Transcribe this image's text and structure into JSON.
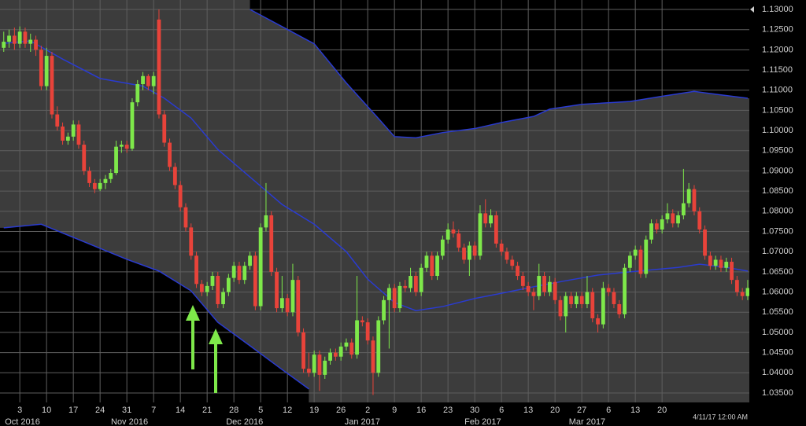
{
  "chart_data": {
    "type": "candlestick",
    "up_color": "#7ee84a",
    "down_color": "#e8433a",
    "grid": true,
    "xlim": [
      -0.7,
      139.3
    ],
    "ylim": [
      1.03266,
      1.13234
    ],
    "yticks": [
      {
        "value": 1.035,
        "label": "1.03500"
      },
      {
        "value": 1.04,
        "label": "1.04000"
      },
      {
        "value": 1.045,
        "label": "1.04500"
      },
      {
        "value": 1.05,
        "label": "1.05000"
      },
      {
        "value": 1.055,
        "label": "1.05500"
      },
      {
        "value": 1.06,
        "label": "1.06000"
      },
      {
        "value": 1.065,
        "label": "1.06500"
      },
      {
        "value": 1.07,
        "label": "1.07000"
      },
      {
        "value": 1.075,
        "label": "1.07500"
      },
      {
        "value": 1.08,
        "label": "1.08000"
      },
      {
        "value": 1.085,
        "label": "1.08500"
      },
      {
        "value": 1.09,
        "label": "1.09000"
      },
      {
        "value": 1.095,
        "label": "1.09500"
      },
      {
        "value": 1.1,
        "label": "1.10000"
      },
      {
        "value": 1.105,
        "label": "1.10500"
      },
      {
        "value": 1.11,
        "label": "1.11000"
      },
      {
        "value": 1.115,
        "label": "1.11500"
      },
      {
        "value": 1.12,
        "label": "1.12000"
      },
      {
        "value": 1.125,
        "label": "1.12500"
      },
      {
        "value": 1.13,
        "label": "1.13000"
      }
    ],
    "xticks": [
      3,
      {
        "value": 8,
        "label": "10"
      },
      {
        "value": 13,
        "label": "17"
      },
      {
        "value": 18,
        "label": "24"
      },
      {
        "value": 23,
        "label": "31"
      },
      {
        "value": 28,
        "label": "7"
      },
      {
        "value": 33,
        "label": "14"
      },
      {
        "value": 38,
        "label": "21"
      },
      {
        "value": 43,
        "label": "28"
      },
      {
        "value": 48,
        "label": "5"
      },
      {
        "value": 53,
        "label": "12"
      },
      {
        "value": 58,
        "label": "19"
      },
      {
        "value": 63,
        "label": "26"
      },
      {
        "value": 68,
        "label": "2"
      },
      {
        "value": 73,
        "label": "9"
      },
      {
        "value": 78,
        "label": "16"
      },
      {
        "value": 83,
        "label": "23"
      },
      {
        "value": 88,
        "label": "30"
      },
      {
        "value": 93,
        "label": "6"
      },
      {
        "value": 98,
        "label": "13"
      },
      {
        "value": 103,
        "label": "20"
      },
      {
        "value": 108,
        "label": "27"
      },
      {
        "value": 113,
        "label": "6"
      },
      {
        "value": 118,
        "label": "13"
      },
      {
        "value": 123,
        "label": "20"
      }
    ],
    "month_labels": [
      {
        "value": 3.5,
        "label": "Oct 2016"
      },
      {
        "value": 23.5,
        "label": "Nov 2016"
      },
      {
        "value": 45,
        "label": "Dec 2016"
      },
      {
        "value": 67,
        "label": "Jan 2017"
      },
      {
        "value": 89.5,
        "label": "Feb 2017"
      },
      {
        "value": 109,
        "label": "Mar 2017"
      }
    ],
    "date_label": "4/11/17 12:00 AM",
    "bands": [
      {
        "color": "#2a3bd0",
        "x": [
          46,
          58,
          64,
          70,
          73,
          77,
          82,
          88,
          93,
          99,
          102,
          108,
          117,
          123,
          129,
          133,
          139
        ],
        "values": [
          1.13,
          1.1215,
          1.1118,
          1.103,
          1.0985,
          1.0982,
          1.0995,
          1.1005,
          1.102,
          1.1035,
          1.1053,
          1.1065,
          1.1072,
          1.1085,
          1.1097,
          1.109,
          1.108
        ]
      },
      {
        "color": "#2a3bd0",
        "x": [
          0,
          5,
          11,
          18,
          26,
          30,
          35,
          40,
          46,
          52,
          58,
          64,
          68,
          73,
          77,
          82,
          88,
          93,
          99,
          105,
          111,
          117,
          126,
          130,
          135,
          139
        ],
        "values": [
          1.1216,
          1.1222,
          1.1177,
          1.1129,
          1.111,
          1.108,
          1.1031,
          1.0953,
          1.0885,
          1.0817,
          1.0768,
          1.07,
          1.0632,
          1.0574,
          1.0554,
          1.0564,
          1.0584,
          1.0597,
          1.0613,
          1.0628,
          1.0642,
          1.065,
          1.0661,
          1.0669,
          1.0661,
          1.0652
        ]
      },
      {
        "color": "#2a3bd0",
        "x": [
          0,
          7,
          14,
          23,
          29,
          35,
          40,
          46,
          52,
          57
        ],
        "values": [
          1.0759,
          1.0768,
          1.073,
          1.0681,
          1.0652,
          1.0603,
          1.0525,
          1.0467,
          1.0408,
          1.036
        ]
      }
    ],
    "ohlc": [
      [
        1.1205,
        1.1245,
        1.1195,
        1.122
      ],
      [
        1.122,
        1.125,
        1.1205,
        1.1235
      ],
      [
        1.1235,
        1.1255,
        1.12,
        1.1215
      ],
      [
        1.1215,
        1.1258,
        1.1205,
        1.1245
      ],
      [
        1.1245,
        1.1255,
        1.1205,
        1.1215
      ],
      [
        1.1215,
        1.124,
        1.1195,
        1.1225
      ],
      [
        1.1225,
        1.1235,
        1.1185,
        1.12
      ],
      [
        1.12,
        1.121,
        1.11,
        1.111
      ],
      [
        1.111,
        1.1205,
        1.11,
        1.1185
      ],
      [
        1.1185,
        1.1195,
        1.103,
        1.104
      ],
      [
        1.104,
        1.106,
        1.1,
        1.101
      ],
      [
        1.101,
        1.102,
        1.0965,
        1.0975
      ],
      [
        1.0975,
        1.0995,
        1.0965,
        1.0985
      ],
      [
        1.0985,
        1.1025,
        1.0975,
        1.1015
      ],
      [
        1.1015,
        1.1025,
        1.0955,
        1.0965
      ],
      [
        1.0965,
        1.0975,
        1.089,
        1.09
      ],
      [
        1.09,
        1.091,
        1.086,
        1.087
      ],
      [
        1.087,
        1.088,
        1.0845,
        1.0855
      ],
      [
        1.0855,
        1.088,
        1.085,
        1.087
      ],
      [
        1.087,
        1.089,
        1.0855,
        1.088
      ],
      [
        1.088,
        1.0905,
        1.087,
        1.0895
      ],
      [
        1.0895,
        1.0975,
        1.089,
        1.096
      ],
      [
        1.096,
        1.0975,
        1.0945,
        1.0965
      ],
      [
        1.0965,
        1.0975,
        1.0945,
        1.0955
      ],
      [
        1.0955,
        1.108,
        1.095,
        1.107
      ],
      [
        1.107,
        1.1125,
        1.106,
        1.1115
      ],
      [
        1.1115,
        1.1145,
        1.11,
        1.1135
      ],
      [
        1.1135,
        1.114,
        1.11,
        1.111
      ],
      [
        1.111,
        1.1145,
        1.109,
        1.1135
      ],
      [
        1.1275,
        1.13,
        1.103,
        1.104
      ],
      [
        1.104,
        1.105,
        1.096,
        1.097
      ],
      [
        1.097,
        1.098,
        1.09,
        1.091
      ],
      [
        1.091,
        1.092,
        1.0855,
        1.0865
      ],
      [
        1.0865,
        1.0875,
        1.08,
        1.081
      ],
      [
        1.081,
        1.082,
        1.075,
        1.076
      ],
      [
        1.076,
        1.077,
        1.068,
        1.069
      ],
      [
        1.069,
        1.07,
        1.061,
        1.062
      ],
      [
        1.062,
        1.063,
        1.059,
        1.06
      ],
      [
        1.06,
        1.0625,
        1.059,
        1.0615
      ],
      [
        1.0615,
        1.065,
        1.0605,
        1.064
      ],
      [
        1.064,
        1.065,
        1.056,
        1.057
      ],
      [
        1.057,
        1.061,
        1.056,
        1.06
      ],
      [
        1.06,
        1.0645,
        1.059,
        1.0635
      ],
      [
        1.0635,
        1.0675,
        1.0625,
        1.0665
      ],
      [
        1.0665,
        1.0675,
        1.062,
        1.063
      ],
      [
        1.063,
        1.0675,
        1.062,
        1.0665
      ],
      [
        1.0665,
        1.07,
        1.0655,
        1.069
      ],
      [
        1.069,
        1.07,
        1.0555,
        1.0565
      ],
      [
        1.0565,
        1.077,
        1.0555,
        1.076
      ],
      [
        1.076,
        1.087,
        1.075,
        1.079
      ],
      [
        1.079,
        1.08,
        1.064,
        1.065
      ],
      [
        1.065,
        1.066,
        1.055,
        1.056
      ],
      [
        1.056,
        1.064,
        1.055,
        1.0585
      ],
      [
        1.0585,
        1.0595,
        1.054,
        1.055
      ],
      [
        1.055,
        1.067,
        1.054,
        1.063
      ],
      [
        1.063,
        1.064,
        1.049,
        1.05
      ],
      [
        1.05,
        1.051,
        1.04,
        1.041
      ],
      [
        1.041,
        1.045,
        1.039,
        1.04
      ],
      [
        1.04,
        1.0455,
        1.039,
        1.0445
      ],
      [
        1.0445,
        1.0455,
        1.0355,
        1.0395
      ],
      [
        1.0395,
        1.044,
        1.0385,
        1.043
      ],
      [
        1.043,
        1.046,
        1.042,
        1.045
      ],
      [
        1.045,
        1.046,
        1.043,
        1.044
      ],
      [
        1.044,
        1.0475,
        1.043,
        1.0465
      ],
      [
        1.0465,
        1.0485,
        1.0455,
        1.0475
      ],
      [
        1.0475,
        1.0485,
        1.0435,
        1.0445
      ],
      [
        1.0445,
        1.064,
        1.0435,
        1.053
      ],
      [
        1.053,
        1.054,
        1.0515,
        1.0525
      ],
      [
        1.0525,
        1.0535,
        1.047,
        1.048
      ],
      [
        1.048,
        1.049,
        1.0345,
        1.04
      ],
      [
        1.04,
        1.054,
        1.039,
        1.053
      ],
      [
        1.053,
        1.059,
        1.052,
        1.058
      ],
      [
        1.058,
        1.062,
        1.046,
        1.061
      ],
      [
        1.061,
        1.062,
        1.055,
        1.056
      ],
      [
        1.056,
        1.0625,
        1.055,
        1.0615
      ],
      [
        1.0615,
        1.063,
        1.06,
        1.061
      ],
      [
        1.061,
        1.066,
        1.06,
        1.064
      ],
      [
        1.064,
        1.065,
        1.059,
        1.06
      ],
      [
        1.06,
        1.067,
        1.059,
        1.066
      ],
      [
        1.066,
        1.07,
        1.065,
        1.069
      ],
      [
        1.069,
        1.07,
        1.063,
        1.064
      ],
      [
        1.064,
        1.07,
        1.063,
        1.069
      ],
      [
        1.069,
        1.074,
        1.068,
        1.073
      ],
      [
        1.073,
        1.077,
        1.072,
        1.0755
      ],
      [
        1.0755,
        1.0775,
        1.0735,
        1.0745
      ],
      [
        1.0745,
        1.0755,
        1.07,
        1.071
      ],
      [
        1.071,
        1.072,
        1.067,
        1.068
      ],
      [
        1.068,
        1.0725,
        1.064,
        1.0715
      ],
      [
        1.0715,
        1.0725,
        1.068,
        1.069
      ],
      [
        1.069,
        1.0815,
        1.068,
        1.0795
      ],
      [
        1.0795,
        1.083,
        1.076,
        1.077
      ],
      [
        1.077,
        1.0805,
        1.076,
        1.079
      ],
      [
        1.079,
        1.08,
        1.071,
        1.072
      ],
      [
        1.072,
        1.073,
        1.069,
        1.07
      ],
      [
        1.07,
        1.071,
        1.067,
        1.068
      ],
      [
        1.068,
        1.069,
        1.0655,
        1.0665
      ],
      [
        1.0665,
        1.0675,
        1.063,
        1.064
      ],
      [
        1.064,
        1.065,
        1.0605,
        1.0615
      ],
      [
        1.0615,
        1.0625,
        1.059,
        1.06
      ],
      [
        1.06,
        1.061,
        1.0555,
        1.059
      ],
      [
        1.059,
        1.067,
        1.058,
        1.064
      ],
      [
        1.064,
        1.065,
        1.059,
        1.06
      ],
      [
        1.06,
        1.064,
        1.059,
        1.0625
      ],
      [
        1.0625,
        1.0635,
        1.057,
        1.058
      ],
      [
        1.058,
        1.059,
        1.053,
        1.054
      ],
      [
        1.054,
        1.06,
        1.05,
        1.059
      ],
      [
        1.059,
        1.06,
        1.056,
        1.057
      ],
      [
        1.057,
        1.06,
        1.056,
        1.059
      ],
      [
        1.059,
        1.06,
        1.056,
        1.057
      ],
      [
        1.057,
        1.064,
        1.056,
        1.06
      ],
      [
        1.06,
        1.061,
        1.0525,
        1.0535
      ],
      [
        1.0535,
        1.0545,
        1.05,
        1.052
      ],
      [
        1.052,
        1.0625,
        1.051,
        1.061
      ],
      [
        1.061,
        1.062,
        1.059,
        1.06
      ],
      [
        1.06,
        1.061,
        1.056,
        1.057
      ],
      [
        1.057,
        1.058,
        1.0535,
        1.0545
      ],
      [
        1.0545,
        1.067,
        1.0535,
        1.066
      ],
      [
        1.066,
        1.07,
        1.065,
        1.069
      ],
      [
        1.069,
        1.0715,
        1.068,
        1.0705
      ],
      [
        1.0705,
        1.0715,
        1.0635,
        1.0645
      ],
      [
        1.0645,
        1.074,
        1.0635,
        1.073
      ],
      [
        1.073,
        1.078,
        1.072,
        1.077
      ],
      [
        1.077,
        1.078,
        1.0745,
        1.0755
      ],
      [
        1.0755,
        1.079,
        1.0745,
        1.078
      ],
      [
        1.078,
        1.082,
        1.077,
        1.0795
      ],
      [
        1.0795,
        1.0805,
        1.076,
        1.077
      ],
      [
        1.077,
        1.08,
        1.076,
        1.079
      ],
      [
        1.079,
        1.0905,
        1.078,
        1.082
      ],
      [
        1.082,
        1.087,
        1.081,
        1.0855
      ],
      [
        1.0855,
        1.0865,
        1.079,
        1.08
      ],
      [
        1.08,
        1.081,
        1.0745,
        1.0755
      ],
      [
        1.0755,
        1.0765,
        1.068,
        1.069
      ],
      [
        1.069,
        1.07,
        1.0655,
        1.0665
      ],
      [
        1.0665,
        1.069,
        1.0655,
        1.068
      ],
      [
        1.068,
        1.069,
        1.065,
        1.066
      ],
      [
        1.066,
        1.0685,
        1.065,
        1.0675
      ],
      [
        1.0675,
        1.0685,
        1.062,
        1.063
      ],
      [
        1.063,
        1.064,
        1.059,
        1.06
      ],
      [
        1.06,
        1.061,
        1.058,
        1.059
      ],
      [
        1.059,
        1.063,
        1.058,
        1.061
      ]
    ]
  }
}
